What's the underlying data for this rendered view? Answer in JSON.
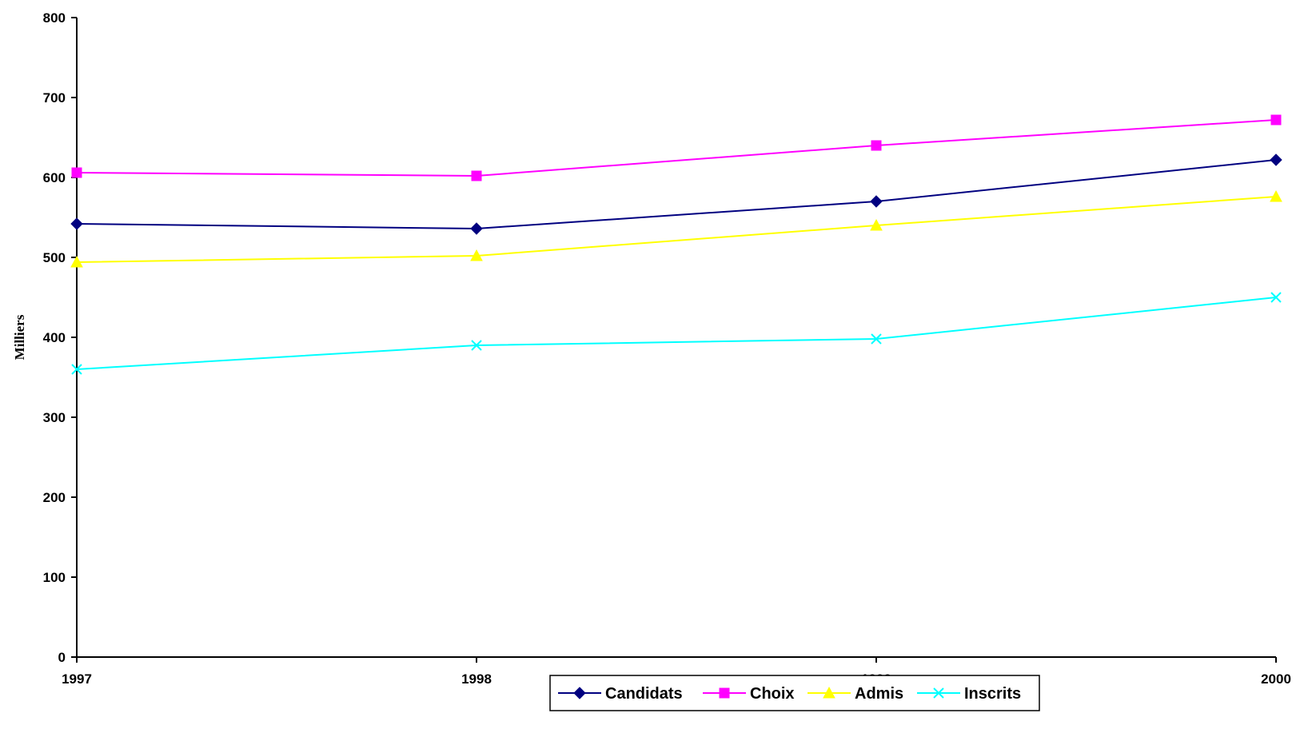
{
  "chart_data": {
    "type": "line",
    "title": "",
    "xlabel": "",
    "ylabel": "Milliers",
    "x": [
      "1997",
      "1998",
      "1999",
      "2000"
    ],
    "yticks": [
      "0",
      "100",
      "200",
      "300",
      "400",
      "500",
      "600",
      "700",
      "800"
    ],
    "ylim": [
      0,
      800
    ],
    "grid": false,
    "legend_position": "bottom",
    "series": [
      {
        "name": "Candidats",
        "values": [
          542,
          536,
          570,
          622
        ],
        "color": "#000080",
        "marker": "diamond"
      },
      {
        "name": "Choix",
        "values": [
          606,
          602,
          640,
          672
        ],
        "color": "#FF00FF",
        "marker": "square"
      },
      {
        "name": "Admis",
        "values": [
          494,
          502,
          540,
          576
        ],
        "color": "#FFFF00",
        "marker": "triangle"
      },
      {
        "name": "Inscrits",
        "values": [
          360,
          390,
          398,
          450
        ],
        "color": "#00FFFF",
        "marker": "x"
      }
    ]
  }
}
